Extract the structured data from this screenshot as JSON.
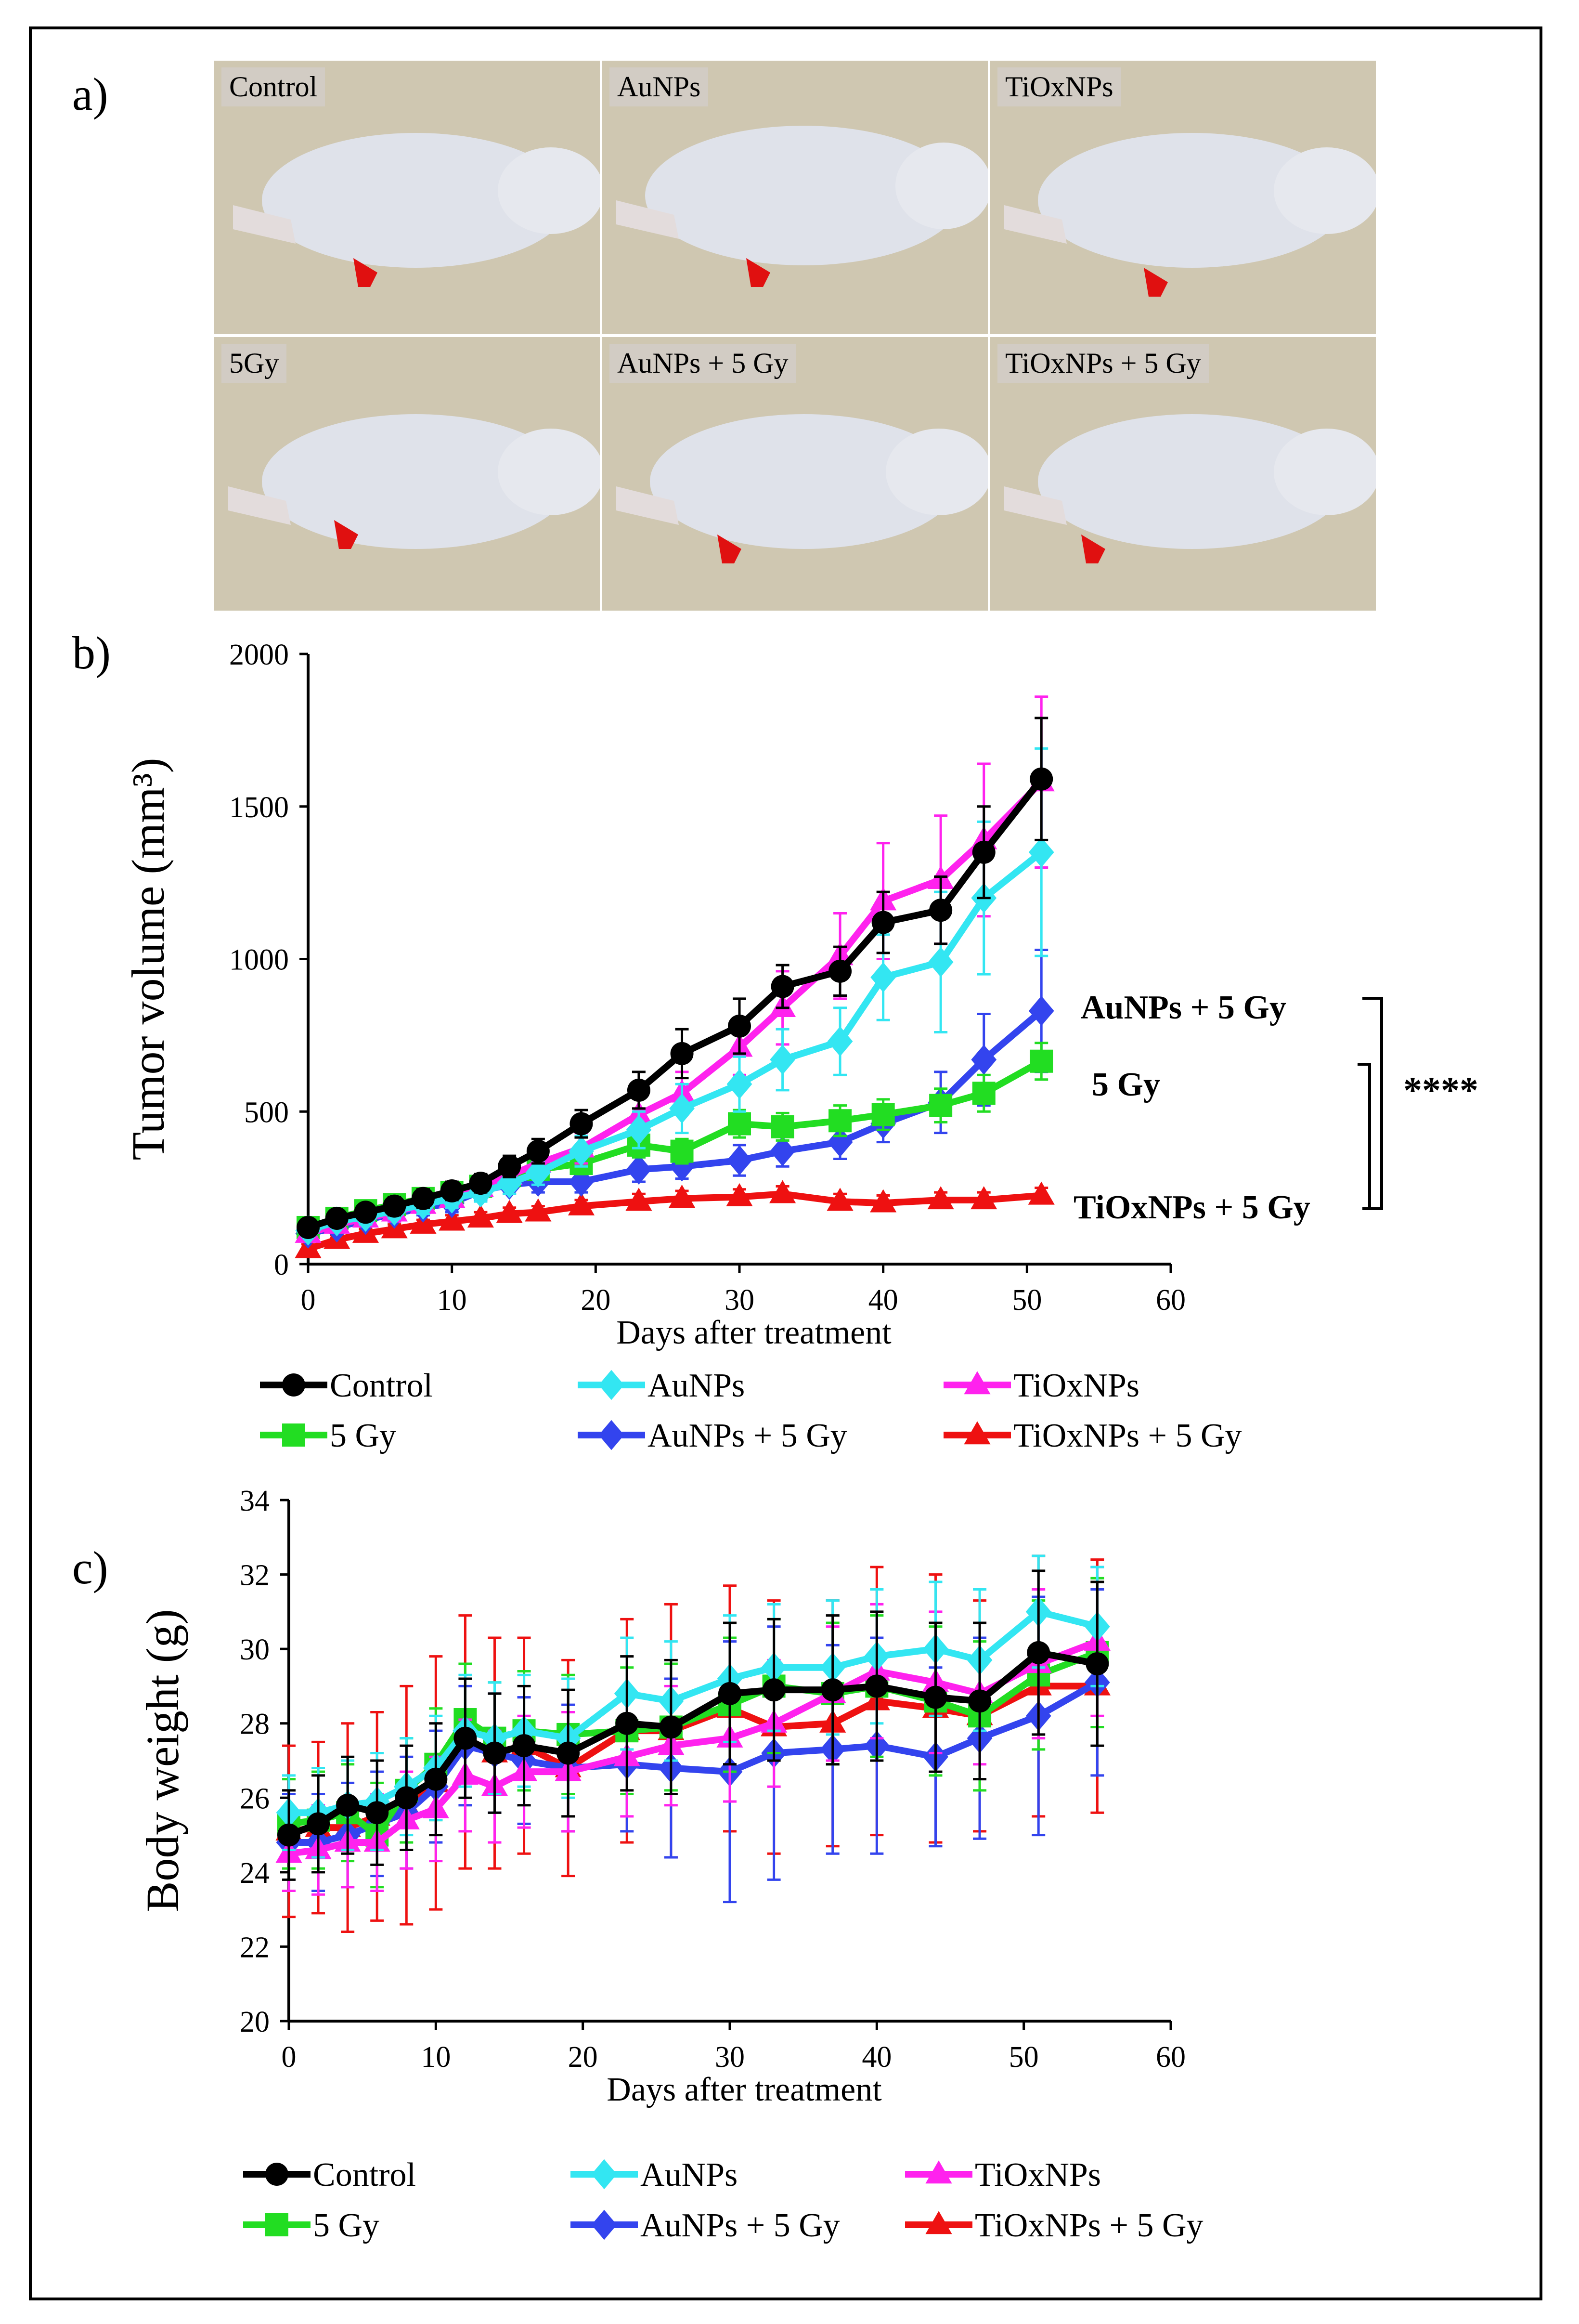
{
  "figure": {
    "panel_labels": {
      "a": "a)",
      "b": "b)",
      "c": "c)"
    }
  },
  "photos": [
    {
      "label": "Control"
    },
    {
      "label": "AuNPs"
    },
    {
      "label": "TiOxNPs"
    },
    {
      "label": "5Gy"
    },
    {
      "label": "AuNPs + 5 Gy"
    },
    {
      "label": "TiOxNPs + 5 Gy"
    }
  ],
  "colors": {
    "Control": "#000000",
    "AuNPs": "#33e6f2",
    "TiOxNPs": "#ff22ee",
    "5 Gy": "#22dd22",
    "AuNPs + 5 Gy": "#3344ee",
    "TiOxNPs + 5 Gy": "#ee1111",
    "arrow": "#e01010"
  },
  "chart_data": [
    {
      "type": "line",
      "panel": "b",
      "xlabel": "Days after treatment",
      "ylabel": "Tumor volume (mm³)",
      "xlim": [
        0,
        60
      ],
      "ylim": [
        0,
        2000
      ],
      "xticks": [
        "0",
        "10",
        "20",
        "30",
        "40",
        "50",
        "60"
      ],
      "yticks": [
        "0",
        "500",
        "1000",
        "1500",
        "2000"
      ],
      "grid": false,
      "legend": [
        "Control",
        "AuNPs",
        "TiOxNPs",
        "5 Gy",
        "AuNPs + 5 Gy",
        "TiOxNPs + 5 Gy"
      ],
      "annotations": {
        "labels": [
          "AuNPs + 5 Gy",
          "5 Gy",
          "TiOxNPs + 5 Gy"
        ],
        "significance": "****"
      },
      "series": [
        {
          "name": "Control",
          "marker": "circle",
          "x": [
            0,
            2,
            4,
            6,
            8,
            10,
            12,
            14,
            16,
            19,
            23,
            26,
            30,
            33,
            37,
            40,
            44,
            47,
            51
          ],
          "values": [
            120,
            150,
            170,
            190,
            215,
            240,
            265,
            320,
            370,
            460,
            570,
            690,
            780,
            910,
            960,
            1120,
            1160,
            1350,
            1590
          ],
          "errors": [
            20,
            25,
            25,
            30,
            30,
            30,
            30,
            35,
            40,
            45,
            60,
            80,
            90,
            70,
            80,
            100,
            110,
            150,
            200
          ]
        },
        {
          "name": "AuNPs",
          "marker": "diamond",
          "x": [
            0,
            2,
            4,
            6,
            8,
            10,
            12,
            14,
            16,
            19,
            23,
            26,
            30,
            33,
            37,
            40,
            44,
            47,
            51
          ],
          "values": [
            110,
            140,
            155,
            175,
            195,
            215,
            235,
            265,
            300,
            370,
            440,
            510,
            590,
            670,
            730,
            940,
            990,
            1200,
            1350
          ],
          "errors": [
            20,
            20,
            25,
            25,
            30,
            30,
            30,
            35,
            40,
            50,
            60,
            80,
            90,
            100,
            110,
            140,
            230,
            250,
            340
          ]
        },
        {
          "name": "TiOxNPs",
          "marker": "triangle",
          "x": [
            0,
            2,
            4,
            6,
            8,
            10,
            12,
            14,
            16,
            19,
            23,
            26,
            30,
            33,
            37,
            40,
            44,
            47,
            51
          ],
          "values": [
            100,
            130,
            150,
            170,
            195,
            215,
            250,
            290,
            330,
            380,
            490,
            560,
            710,
            840,
            1010,
            1190,
            1260,
            1390,
            1580
          ],
          "errors": [
            20,
            25,
            25,
            30,
            30,
            30,
            35,
            40,
            40,
            50,
            60,
            70,
            90,
            120,
            140,
            190,
            210,
            250,
            280
          ]
        },
        {
          "name": "5 Gy",
          "marker": "square",
          "x": [
            0,
            2,
            4,
            6,
            8,
            10,
            12,
            14,
            16,
            19,
            23,
            26,
            30,
            33,
            37,
            40,
            44,
            47,
            51
          ],
          "values": [
            120,
            150,
            175,
            195,
            215,
            235,
            255,
            290,
            310,
            330,
            390,
            370,
            460,
            450,
            470,
            490,
            520,
            560,
            665
          ],
          "errors": [
            20,
            20,
            25,
            25,
            25,
            30,
            30,
            30,
            30,
            35,
            40,
            40,
            45,
            45,
            50,
            50,
            55,
            60,
            60
          ]
        },
        {
          "name": "AuNPs + 5 Gy",
          "marker": "diamond",
          "x": [
            0,
            2,
            4,
            6,
            8,
            10,
            12,
            14,
            16,
            19,
            23,
            26,
            30,
            33,
            37,
            40,
            44,
            47,
            51
          ],
          "values": [
            100,
            120,
            145,
            165,
            185,
            200,
            240,
            260,
            270,
            270,
            310,
            320,
            340,
            370,
            400,
            460,
            530,
            670,
            830
          ],
          "errors": [
            20,
            20,
            20,
            25,
            25,
            30,
            30,
            30,
            35,
            35,
            40,
            40,
            50,
            50,
            55,
            60,
            100,
            150,
            200
          ]
        },
        {
          "name": "TiOxNPs + 5 Gy",
          "marker": "triangle",
          "x": [
            0,
            2,
            4,
            6,
            8,
            10,
            12,
            14,
            16,
            19,
            23,
            26,
            30,
            33,
            37,
            40,
            44,
            47,
            51
          ],
          "values": [
            50,
            80,
            100,
            115,
            130,
            140,
            150,
            165,
            170,
            190,
            205,
            215,
            220,
            230,
            205,
            200,
            210,
            210,
            225
          ],
          "errors": [
            15,
            15,
            15,
            15,
            15,
            20,
            20,
            20,
            20,
            20,
            25,
            25,
            25,
            25,
            25,
            25,
            25,
            25,
            25
          ]
        }
      ]
    },
    {
      "type": "line",
      "panel": "c",
      "xlabel": "Days after treatment",
      "ylabel": "Body weight (g)",
      "xlim": [
        0,
        60
      ],
      "ylim": [
        20,
        34
      ],
      "xticks": [
        "0",
        "10",
        "20",
        "30",
        "40",
        "50",
        "60"
      ],
      "yticks": [
        "20",
        "22",
        "24",
        "26",
        "28",
        "30",
        "32",
        "34"
      ],
      "grid": false,
      "legend": [
        "Control",
        "AuNPs",
        "TiOxNPs",
        "5 Gy",
        "AuNPs + 5 Gy",
        "TiOxNPs + 5 Gy"
      ],
      "series": [
        {
          "name": "Control",
          "marker": "circle",
          "x": [
            0,
            2,
            4,
            6,
            8,
            10,
            12,
            14,
            16,
            19,
            23,
            26,
            30,
            33,
            37,
            40,
            44,
            47,
            51,
            55
          ],
          "values": [
            25.0,
            25.3,
            25.8,
            25.6,
            26.0,
            26.5,
            27.6,
            27.2,
            27.4,
            27.2,
            28.0,
            27.9,
            28.8,
            28.9,
            28.9,
            29.0,
            28.7,
            28.6,
            29.9,
            29.6
          ],
          "errors": [
            1.2,
            1.3,
            1.3,
            1.4,
            1.4,
            1.5,
            1.6,
            1.6,
            1.6,
            1.7,
            1.8,
            1.8,
            1.9,
            1.9,
            2.0,
            2.0,
            2.0,
            2.1,
            2.2,
            2.2
          ]
        },
        {
          "name": "AuNPs",
          "marker": "diamond",
          "x": [
            0,
            2,
            4,
            6,
            8,
            10,
            12,
            14,
            16,
            19,
            23,
            26,
            30,
            33,
            37,
            40,
            44,
            47,
            51,
            55
          ],
          "values": [
            25.6,
            25.6,
            25.8,
            25.9,
            26.3,
            26.8,
            27.8,
            27.6,
            27.8,
            27.6,
            28.8,
            28.6,
            29.2,
            29.5,
            29.5,
            29.8,
            30.0,
            29.7,
            31.0,
            30.6
          ],
          "errors": [
            1.0,
            1.2,
            1.2,
            1.3,
            1.3,
            1.4,
            1.5,
            1.5,
            1.5,
            1.6,
            1.5,
            1.6,
            1.7,
            1.7,
            1.8,
            1.8,
            1.8,
            1.9,
            1.5,
            1.6
          ]
        },
        {
          "name": "TiOxNPs",
          "marker": "triangle",
          "x": [
            0,
            2,
            4,
            6,
            8,
            10,
            12,
            14,
            16,
            19,
            23,
            26,
            30,
            33,
            37,
            40,
            44,
            47,
            51,
            55
          ],
          "values": [
            24.5,
            24.6,
            24.8,
            24.8,
            25.4,
            25.7,
            26.6,
            26.3,
            26.7,
            26.7,
            27.1,
            27.4,
            27.6,
            28.0,
            28.8,
            29.4,
            29.1,
            28.8,
            29.6,
            30.2
          ],
          "errors": [
            1.0,
            1.2,
            1.2,
            1.3,
            1.3,
            1.4,
            1.5,
            1.5,
            1.5,
            1.6,
            1.6,
            1.6,
            1.7,
            1.7,
            1.8,
            1.8,
            1.9,
            1.9,
            2.0,
            2.0
          ]
        },
        {
          "name": "5 Gy",
          "marker": "square",
          "x": [
            0,
            2,
            4,
            6,
            8,
            10,
            12,
            14,
            16,
            19,
            23,
            26,
            30,
            33,
            37,
            40,
            44,
            47,
            51,
            55
          ],
          "values": [
            25.3,
            25.4,
            25.6,
            25.0,
            26.2,
            26.9,
            28.1,
            27.6,
            27.8,
            27.7,
            27.8,
            27.9,
            28.5,
            29.0,
            28.8,
            29.0,
            28.6,
            28.2,
            29.3,
            29.9
          ],
          "errors": [
            1.2,
            1.3,
            1.3,
            1.4,
            1.4,
            1.5,
            1.5,
            1.5,
            1.6,
            1.6,
            1.7,
            1.7,
            1.8,
            1.8,
            1.9,
            1.9,
            2.0,
            2.0,
            2.0,
            2.0
          ]
        },
        {
          "name": "AuNPs + 5 Gy",
          "marker": "diamond",
          "x": [
            0,
            2,
            4,
            6,
            8,
            10,
            12,
            14,
            16,
            19,
            23,
            26,
            30,
            33,
            37,
            40,
            44,
            47,
            51,
            55
          ],
          "values": [
            24.8,
            24.8,
            25.0,
            25.3,
            25.6,
            26.3,
            27.4,
            27.2,
            27.0,
            26.8,
            26.9,
            26.8,
            26.7,
            27.2,
            27.3,
            27.4,
            27.1,
            27.6,
            28.2,
            29.1
          ],
          "errors": [
            1.3,
            1.3,
            1.4,
            1.4,
            1.5,
            1.5,
            1.6,
            1.6,
            1.7,
            1.7,
            1.8,
            2.4,
            3.5,
            3.4,
            2.8,
            2.9,
            2.4,
            2.7,
            3.2,
            2.5
          ]
        },
        {
          "name": "TiOxNPs + 5 Gy",
          "marker": "triangle",
          "x": [
            0,
            2,
            4,
            6,
            8,
            10,
            12,
            14,
            16,
            19,
            23,
            26,
            30,
            33,
            37,
            40,
            44,
            47,
            51,
            55
          ],
          "values": [
            25.1,
            25.2,
            25.2,
            25.5,
            25.8,
            26.4,
            27.5,
            27.2,
            27.4,
            26.8,
            27.8,
            27.8,
            28.4,
            27.9,
            28.0,
            28.6,
            28.4,
            28.2,
            29.0,
            29.0
          ],
          "errors": [
            2.3,
            2.3,
            2.8,
            2.8,
            3.2,
            3.4,
            3.4,
            3.1,
            2.9,
            2.9,
            3.0,
            3.4,
            3.3,
            3.4,
            3.3,
            3.6,
            3.6,
            3.1,
            3.5,
            3.4
          ]
        }
      ]
    }
  ]
}
